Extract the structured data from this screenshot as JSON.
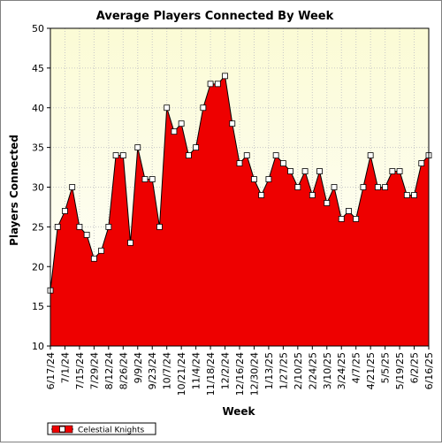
{
  "chart_data": {
    "type": "area",
    "title": "Average Players Connected By Week",
    "xlabel": "Week",
    "ylabel": "Players Connected",
    "ylim": [
      10,
      50
    ],
    "yticks": [
      10,
      15,
      20,
      25,
      30,
      35,
      40,
      45,
      50
    ],
    "grid": true,
    "legend_position": "bottom-left",
    "x": [
      "6/17/24",
      "6/24/24",
      "7/1/24",
      "7/8/24",
      "7/15/24",
      "7/22/24",
      "7/29/24",
      "8/5/24",
      "8/12/24",
      "8/19/24",
      "8/26/24",
      "9/2/24",
      "9/9/24",
      "9/16/24",
      "9/23/24",
      "9/30/24",
      "10/7/24",
      "10/14/24",
      "10/21/24",
      "10/28/24",
      "11/4/24",
      "11/11/24",
      "11/18/24",
      "11/25/24",
      "12/2/24",
      "12/9/24",
      "12/16/24",
      "12/23/24",
      "12/30/24",
      "1/6/25",
      "1/13/25",
      "1/20/25",
      "1/27/25",
      "2/3/25",
      "2/10/25",
      "2/17/25",
      "2/24/25",
      "3/3/25",
      "3/10/25",
      "3/17/25",
      "3/24/25",
      "3/31/25",
      "4/7/25",
      "4/14/25",
      "4/21/25",
      "4/28/25",
      "5/5/25",
      "5/12/25",
      "5/19/25",
      "5/26/25",
      "6/2/25",
      "6/9/25",
      "6/16/25"
    ],
    "x_tick_labels": [
      "6/17/24",
      "7/1/24",
      "7/15/24",
      "7/29/24",
      "8/12/24",
      "8/26/24",
      "9/9/24",
      "9/23/24",
      "10/7/24",
      "10/21/24",
      "11/4/24",
      "11/18/24",
      "12/2/24",
      "12/16/24",
      "12/30/24",
      "1/13/25",
      "1/27/25",
      "2/10/25",
      "2/24/25",
      "3/10/25",
      "3/24/25",
      "4/7/25",
      "4/21/25",
      "5/5/25",
      "5/19/25",
      "6/2/25",
      "6/16/25"
    ],
    "series": [
      {
        "name": "Celestial Knights",
        "color": "#ee0000",
        "values": [
          17,
          25,
          27,
          30,
          25,
          24,
          21,
          22,
          25,
          34,
          34,
          23,
          35,
          31,
          31,
          25,
          40,
          37,
          38,
          34,
          35,
          40,
          43,
          43,
          44,
          38,
          33,
          34,
          31,
          29,
          31,
          34,
          33,
          32,
          30,
          32,
          29,
          32,
          28,
          30,
          26,
          27,
          26,
          30,
          34,
          30,
          30,
          32,
          32,
          29,
          29,
          33,
          34
        ]
      }
    ]
  },
  "colors": {
    "plot_background_top": "#fbfbd5",
    "plot_background_bottom": "#ffffff",
    "area_fill": "#ee0000",
    "line": "#000000",
    "marker_fill": "#ffffff",
    "grid": "#c8c8c8"
  }
}
